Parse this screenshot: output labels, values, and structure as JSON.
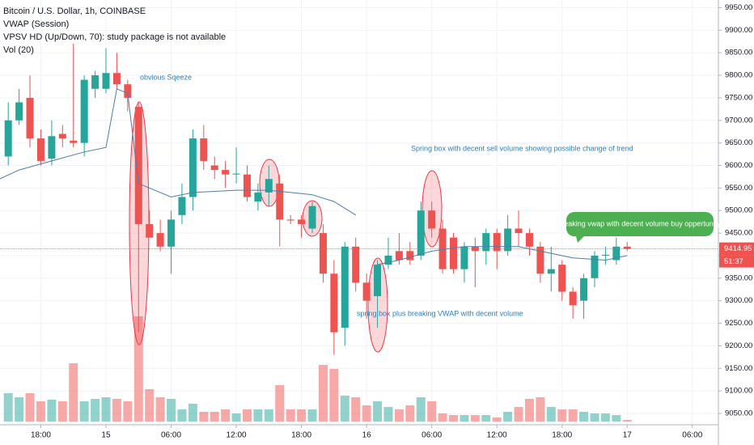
{
  "chart_data": {
    "type": "candlestick",
    "title": "Bitcoin / U.S. Dollar, 1h, COINBASE",
    "indicators": [
      "VWAP (Session)",
      "VPSV HD (Up/Down, 70): study package is not available",
      "Vol (20)"
    ],
    "x": [
      -9,
      -8,
      -7,
      -6,
      -5,
      -4,
      -3,
      -2,
      -1,
      0,
      1,
      2,
      3,
      4,
      5,
      6,
      7,
      8,
      9,
      10,
      11,
      12,
      13,
      14,
      15,
      16,
      17,
      18,
      19,
      20,
      21,
      22,
      23,
      24,
      25,
      26,
      27,
      28,
      29,
      30,
      31,
      32,
      33,
      34,
      35,
      36,
      37,
      38,
      39,
      40,
      41,
      42,
      43,
      44,
      45,
      46,
      47,
      48
    ],
    "open": [
      9620,
      9700,
      9750,
      9660,
      9615,
      9670,
      9655,
      9650,
      9770,
      9770,
      9805,
      9780,
      9730,
      9470,
      9450,
      9420,
      9490,
      9530,
      9660,
      9600,
      9590,
      9580,
      9580,
      9520,
      9540,
      9560,
      9480,
      9480,
      9460,
      9450,
      9360,
      9240,
      9420,
      9340,
      9310,
      9380,
      9410,
      9410,
      9400,
      9500,
      9460,
      9440,
      9370,
      9420,
      9410,
      9450,
      9410,
      9460,
      9450,
      9420,
      9360,
      9380,
      9320,
      9300,
      9350,
      9400,
      9390,
      9420
    ],
    "high": [
      9740,
      9770,
      9800,
      9680,
      9700,
      9690,
      9870,
      9800,
      9810,
      9860,
      9850,
      9790,
      9740,
      9500,
      9480,
      9500,
      9560,
      9680,
      9690,
      9620,
      9610,
      9640,
      9600,
      9560,
      9600,
      9580,
      9490,
      9490,
      9520,
      9470,
      9390,
      9430,
      9440,
      9360,
      9390,
      9440,
      9450,
      9430,
      9520,
      9520,
      9480,
      9450,
      9430,
      9440,
      9460,
      9460,
      9490,
      9500,
      9460,
      9430,
      9420,
      9390,
      9330,
      9360,
      9410,
      9420,
      9440,
      9430
    ],
    "low": [
      9600,
      9690,
      9640,
      9600,
      9600,
      9640,
      9640,
      9620,
      9750,
      9760,
      9770,
      9720,
      9230,
      9440,
      9410,
      9360,
      9470,
      9500,
      9590,
      9570,
      9550,
      9560,
      9520,
      9500,
      9510,
      9420,
      9470,
      9440,
      9450,
      9340,
      9180,
      9200,
      9320,
      9260,
      9240,
      9370,
      9380,
      9380,
      9390,
      9440,
      9360,
      9360,
      9340,
      9330,
      9380,
      9370,
      9400,
      9420,
      9400,
      9340,
      9320,
      9300,
      9260,
      9260,
      9330,
      9380,
      9380,
      9410
    ],
    "close": [
      9700,
      9740,
      9660,
      9610,
      9665,
      9660,
      9650,
      9790,
      9800,
      9805,
      9780,
      9750,
      9470,
      9440,
      9420,
      9480,
      9530,
      9660,
      9610,
      9590,
      9580,
      9582,
      9530,
      9540,
      9570,
      9480,
      9478,
      9470,
      9510,
      9360,
      9230,
      9420,
      9340,
      9300,
      9380,
      9400,
      9390,
      9390,
      9500,
      9460,
      9370,
      9370,
      9420,
      9410,
      9450,
      9410,
      9460,
      9450,
      9420,
      9360,
      9370,
      9320,
      9290,
      9350,
      9400,
      9402,
      9420,
      9415
    ],
    "volume": [
      35,
      30,
      35,
      25,
      27,
      25,
      72,
      25,
      28,
      30,
      28,
      25,
      130,
      40,
      30,
      28,
      15,
      22,
      12,
      12,
      15,
      10,
      15,
      15,
      15,
      45,
      15,
      15,
      15,
      70,
      65,
      32,
      30,
      20,
      25,
      18,
      15,
      20,
      30,
      25,
      10,
      8,
      8,
      8,
      8,
      5,
      12,
      18,
      28,
      30,
      18,
      15,
      15,
      12,
      10,
      10,
      8,
      2
    ],
    "up_color": "#26a69a",
    "down_color": "#ef5350",
    "vwap": {
      "x": [
        -9.8,
        -8,
        -5,
        -2,
        0,
        1,
        2,
        3,
        6,
        8,
        12,
        15,
        19,
        21,
        23,
        24,
        25,
        27,
        30,
        33,
        38,
        40,
        43,
        46,
        48
      ],
      "values": [
        9570,
        9590,
        9610,
        9630,
        9640,
        9770,
        9760,
        9560,
        9530,
        9540,
        9545,
        9545,
        9535,
        9520,
        9490,
        null,
        9380,
        9390,
        9410,
        9420,
        9420,
        9410,
        9395,
        9390,
        9400
      ],
      "color": "#4a7fa8"
    },
    "price": 9414.95,
    "countdown": "51:37",
    "xlim": [
      -9.76,
      56.4
    ],
    "xticks": [
      {
        "value": -6,
        "label": "18:00"
      },
      {
        "value": 0,
        "label": "15"
      },
      {
        "value": 6,
        "label": "06:00"
      },
      {
        "value": 12,
        "label": "12:00"
      },
      {
        "value": 18,
        "label": "18:00"
      },
      {
        "value": 24,
        "label": "16"
      },
      {
        "value": 30,
        "label": "06:00"
      },
      {
        "value": 36,
        "label": "12:00"
      },
      {
        "value": 42,
        "label": "18:00"
      },
      {
        "value": 48,
        "label": "17"
      },
      {
        "value": 54,
        "label": "06:00"
      }
    ],
    "ylim": [
      9032,
      9967
    ],
    "yticks": [
      {
        "value": 9050,
        "label": "9050.00"
      },
      {
        "value": 9100,
        "label": "9100.00"
      },
      {
        "value": 9150,
        "label": "9150.00"
      },
      {
        "value": 9200,
        "label": "9200.00"
      },
      {
        "value": 9250,
        "label": "9250.00"
      },
      {
        "value": 9300,
        "label": "9300.00"
      },
      {
        "value": 9350,
        "label": "9350.00"
      },
      {
        "value": 9400,
        "label": "9400.00"
      },
      {
        "value": 9450,
        "label": "9450.00"
      },
      {
        "value": 9500,
        "label": "9500.00"
      },
      {
        "value": 9550,
        "label": "9550.00"
      },
      {
        "value": 9600,
        "label": "9600.00"
      },
      {
        "value": 9650,
        "label": "9650.00"
      },
      {
        "value": 9700,
        "label": "9700.00"
      },
      {
        "value": 9750,
        "label": "9750.00"
      },
      {
        "value": 9800,
        "label": "9800.00"
      },
      {
        "value": 9850,
        "label": "9850.00"
      },
      {
        "value": 9900,
        "label": "9900.00"
      },
      {
        "value": 9950,
        "label": "9950.00"
      }
    ],
    "grid": true,
    "annotations": [
      "obvious Sqeeze",
      "Spring box with decent sell volume showing possible change of trend",
      "spring box plus breaking VWAP with decent volume",
      "breaking vwap with decent  volume buy oppertunity"
    ]
  }
}
